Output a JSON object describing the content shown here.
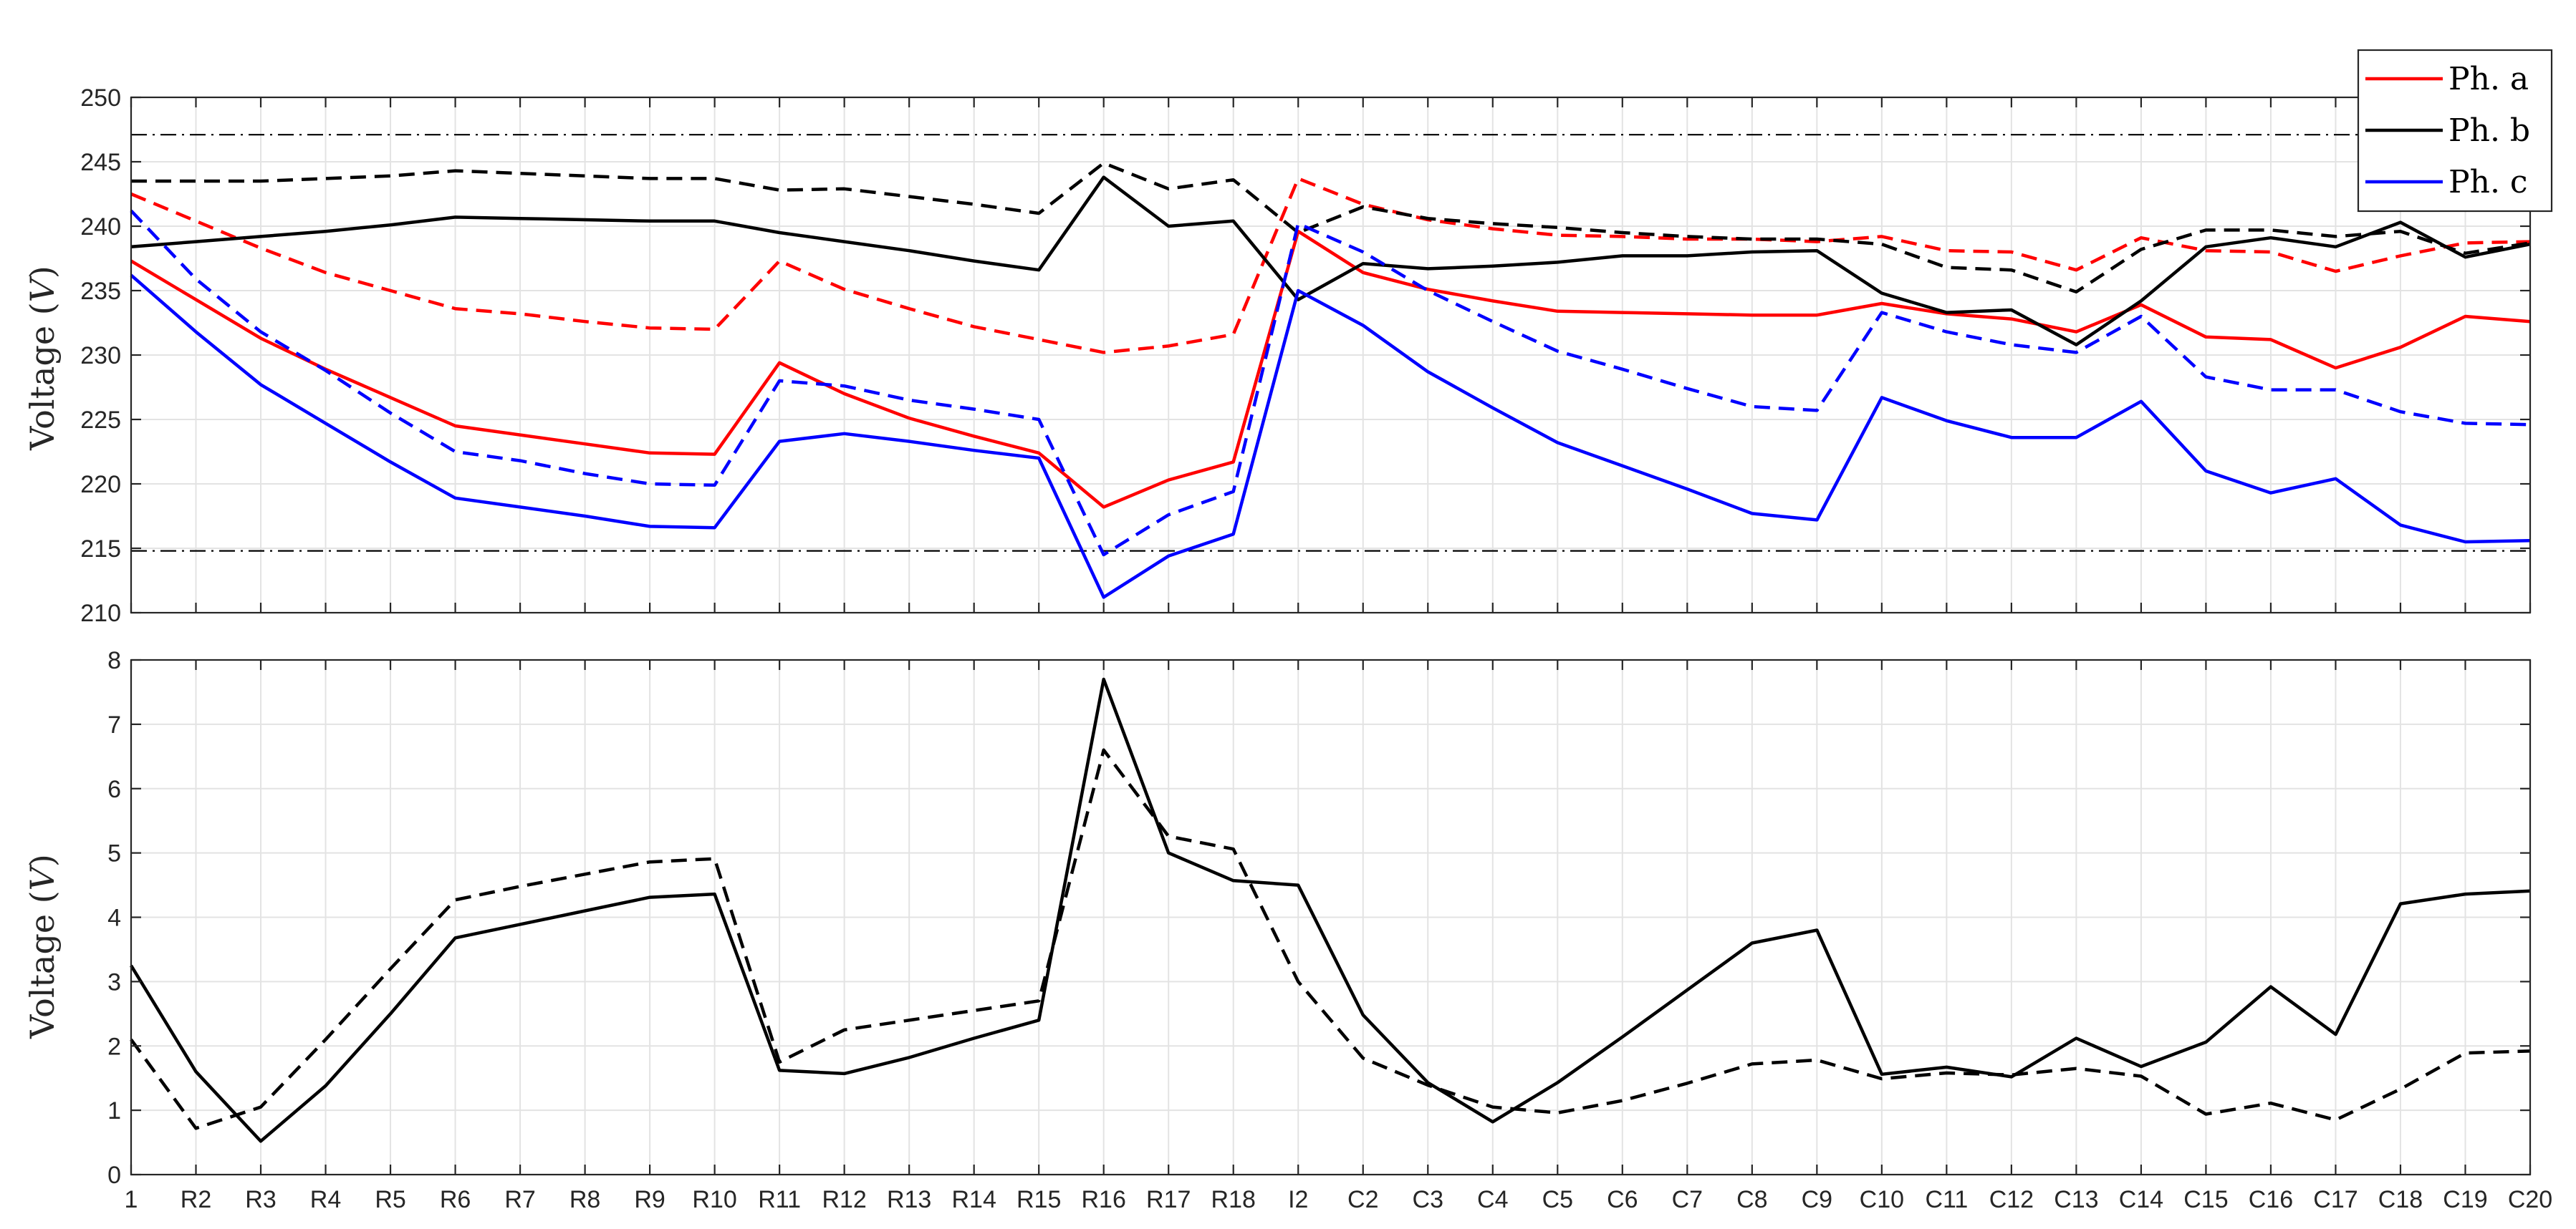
{
  "chart_data": [
    {
      "type": "line",
      "ylabel": "Voltage",
      "ylabel_unit": "V",
      "ylim": [
        210,
        250
      ],
      "yticks": [
        210,
        215,
        220,
        225,
        230,
        235,
        240,
        245,
        250
      ],
      "grid": true,
      "legend_position": "top-right",
      "x": [
        "1",
        "R2",
        "R3",
        "R4",
        "R5",
        "R6",
        "R7",
        "R8",
        "R9",
        "R10",
        "R11",
        "R12",
        "R13",
        "R14",
        "R15",
        "R16",
        "R17",
        "R18",
        "I2",
        "C2",
        "C3",
        "C4",
        "C5",
        "C6",
        "C7",
        "C8",
        "C9",
        "C10",
        "C11",
        "C12",
        "C13",
        "C14",
        "C15",
        "C16",
        "C17",
        "C18",
        "C19",
        "C20"
      ],
      "reference_lines": [
        247.1,
        214.8
      ],
      "legend": [
        {
          "name": "Ph. a",
          "color": "#ff0000"
        },
        {
          "name": "Ph. b",
          "color": "#000000"
        },
        {
          "name": "Ph. c",
          "color": "#0000ff"
        }
      ],
      "series": [
        {
          "phase": "a",
          "color": "#ff0000",
          "dash": "solid",
          "values": [
            237.3,
            234.3,
            231.3,
            228.9,
            226.7,
            224.5,
            223.8,
            223.1,
            222.4,
            222.3,
            229.4,
            227.0,
            225.1,
            223.7,
            222.4,
            218.2,
            220.3,
            221.7,
            239.6,
            236.4,
            235.1,
            234.2,
            233.4,
            233.3,
            233.2,
            233.1,
            233.1,
            234.0,
            233.2,
            232.8,
            231.8,
            233.9,
            231.4,
            231.2,
            229.0,
            230.6,
            233.0,
            232.6
          ]
        },
        {
          "phase": "a",
          "color": "#ff0000",
          "dash": "dashed",
          "values": [
            242.5,
            240.4,
            238.3,
            236.4,
            235.0,
            233.6,
            233.2,
            232.6,
            232.1,
            232.0,
            237.3,
            235.1,
            233.6,
            232.2,
            231.2,
            230.2,
            230.7,
            231.6,
            243.7,
            241.7,
            240.5,
            239.8,
            239.3,
            239.2,
            239.0,
            239.0,
            238.8,
            239.2,
            238.1,
            238.0,
            236.6,
            239.1,
            238.1,
            238.0,
            236.5,
            237.7,
            238.7,
            238.8
          ]
        },
        {
          "phase": "b",
          "color": "#000000",
          "dash": "solid",
          "values": [
            238.4,
            238.8,
            239.2,
            239.6,
            240.1,
            240.7,
            240.6,
            240.5,
            240.4,
            240.4,
            239.5,
            238.8,
            238.1,
            237.3,
            236.6,
            243.8,
            240.0,
            240.4,
            234.3,
            237.1,
            236.7,
            236.9,
            237.2,
            237.7,
            237.7,
            238.0,
            238.1,
            234.8,
            233.3,
            233.5,
            230.8,
            234.2,
            238.4,
            239.1,
            238.4,
            240.3,
            237.6,
            238.6
          ]
        },
        {
          "phase": "b",
          "color": "#000000",
          "dash": "dashed",
          "values": [
            243.5,
            243.5,
            243.5,
            243.7,
            243.9,
            244.3,
            244.1,
            243.9,
            243.7,
            243.7,
            242.8,
            242.9,
            242.3,
            241.7,
            241.0,
            244.9,
            242.9,
            243.6,
            239.5,
            241.5,
            240.6,
            240.2,
            239.9,
            239.5,
            239.2,
            239.0,
            239.0,
            238.6,
            236.8,
            236.6,
            234.9,
            238.2,
            239.7,
            239.7,
            239.2,
            239.6,
            237.9,
            238.7
          ]
        },
        {
          "phase": "c",
          "color": "#0000ff",
          "dash": "solid",
          "values": [
            236.2,
            231.8,
            227.7,
            224.7,
            221.7,
            218.9,
            218.2,
            217.5,
            216.7,
            216.6,
            223.3,
            223.9,
            223.3,
            222.6,
            222.0,
            211.2,
            214.4,
            216.1,
            235.0,
            232.3,
            228.7,
            225.9,
            223.2,
            221.4,
            219.6,
            217.7,
            217.2,
            226.7,
            224.9,
            223.6,
            223.6,
            226.4,
            221.0,
            219.3,
            220.4,
            216.8,
            215.5,
            215.6
          ]
        },
        {
          "phase": "c",
          "color": "#0000ff",
          "dash": "dashed",
          "values": [
            241.2,
            235.9,
            231.8,
            228.8,
            225.5,
            222.5,
            221.8,
            220.8,
            220.0,
            219.9,
            228.0,
            227.6,
            226.5,
            225.8,
            225.0,
            214.5,
            217.6,
            219.4,
            240.2,
            238.0,
            235.0,
            232.6,
            230.3,
            228.9,
            227.4,
            226.0,
            225.7,
            233.3,
            231.8,
            230.8,
            230.2,
            233.0,
            228.3,
            227.3,
            227.3,
            225.6,
            224.7,
            224.6
          ]
        }
      ]
    },
    {
      "type": "line",
      "ylabel": "Voltage",
      "ylabel_unit": "V",
      "ylim": [
        0,
        8
      ],
      "yticks": [
        0,
        1,
        2,
        3,
        4,
        5,
        6,
        7,
        8
      ],
      "grid": true,
      "x": [
        "1",
        "R2",
        "R3",
        "R4",
        "R5",
        "R6",
        "R7",
        "R8",
        "R9",
        "R10",
        "R11",
        "R12",
        "R13",
        "R14",
        "R15",
        "R16",
        "R17",
        "R18",
        "I2",
        "C2",
        "C3",
        "C4",
        "C5",
        "C6",
        "C7",
        "C8",
        "C9",
        "C10",
        "C11",
        "C12",
        "C13",
        "C14",
        "C15",
        "C16",
        "C17",
        "C18",
        "C19",
        "C20"
      ],
      "series": [
        {
          "color": "#000000",
          "dash": "solid",
          "values": [
            3.25,
            1.6,
            0.52,
            1.38,
            2.5,
            3.68,
            3.89,
            4.1,
            4.31,
            4.36,
            1.62,
            1.57,
            1.82,
            2.12,
            2.4,
            7.7,
            5.0,
            4.57,
            4.5,
            2.48,
            1.43,
            0.82,
            1.43,
            2.14,
            2.87,
            3.6,
            3.8,
            1.56,
            1.67,
            1.52,
            2.12,
            1.68,
            2.06,
            2.92,
            2.18,
            4.21,
            4.36,
            4.41
          ]
        },
        {
          "color": "#000000",
          "dash": "dashed",
          "values": [
            2.1,
            0.72,
            1.05,
            2.1,
            3.2,
            4.27,
            4.48,
            4.67,
            4.86,
            4.91,
            1.75,
            2.25,
            2.4,
            2.55,
            2.7,
            6.6,
            5.26,
            5.06,
            3.0,
            1.81,
            1.39,
            1.05,
            0.96,
            1.15,
            1.42,
            1.72,
            1.78,
            1.49,
            1.58,
            1.55,
            1.65,
            1.53,
            0.94,
            1.11,
            0.85,
            1.33,
            1.89,
            1.92
          ]
        }
      ]
    }
  ]
}
